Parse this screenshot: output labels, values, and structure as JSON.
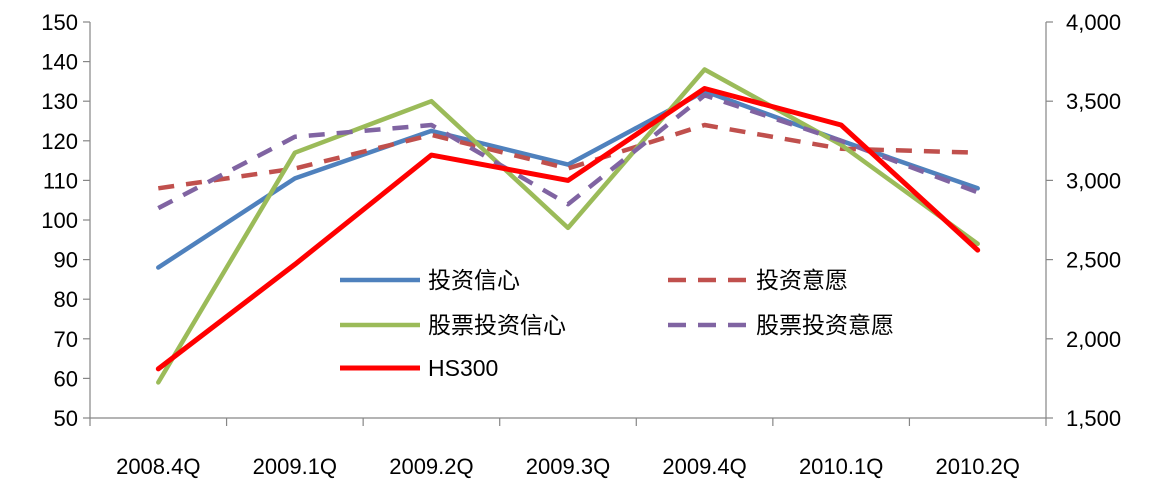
{
  "chart_data": {
    "type": "line",
    "title": "",
    "categories": [
      "2008.4Q",
      "2009.1Q",
      "2009.2Q",
      "2009.3Q",
      "2009.4Q",
      "2010.1Q",
      "2010.2Q"
    ],
    "y_left": {
      "range": [
        50,
        150
      ],
      "ticks": [
        "50",
        "60",
        "70",
        "80",
        "90",
        "100",
        "110",
        "120",
        "130",
        "140",
        "150"
      ],
      "tick_values": [
        50,
        60,
        70,
        80,
        90,
        100,
        110,
        120,
        130,
        140,
        150
      ]
    },
    "y_right": {
      "range": [
        1500,
        4000
      ],
      "ticks": [
        "1,500",
        "2,000",
        "2,500",
        "3,000",
        "3,500",
        "4,000"
      ],
      "tick_values": [
        1500,
        2000,
        2500,
        3000,
        3500,
        4000
      ]
    },
    "grid": false,
    "legend_position": "center",
    "series": [
      {
        "name": "投资信心",
        "axis": "left",
        "color": "#4f81bd",
        "dash": "solid",
        "values": [
          88,
          110.5,
          122.5,
          114,
          132.5,
          120,
          108
        ]
      },
      {
        "name": "投资意愿",
        "axis": "left",
        "color": "#c0504d",
        "dash": "dashed",
        "values": [
          108,
          113,
          121.5,
          113,
          124,
          118,
          117
        ]
      },
      {
        "name": "股票投资信心",
        "axis": "left",
        "color": "#9bbb59",
        "dash": "solid",
        "values": [
          59,
          117,
          130,
          98,
          138,
          119,
          94
        ]
      },
      {
        "name": "股票投资意愿",
        "axis": "left",
        "color": "#8064a2",
        "dash": "dashed",
        "values": [
          103,
          121,
          124,
          104,
          131.5,
          120,
          107
        ]
      },
      {
        "name": "HS300",
        "axis": "right",
        "color": "#ff0000",
        "dash": "solid",
        "values": [
          1810,
          2470,
          3160,
          3000,
          3580,
          3350,
          2560
        ]
      }
    ]
  }
}
